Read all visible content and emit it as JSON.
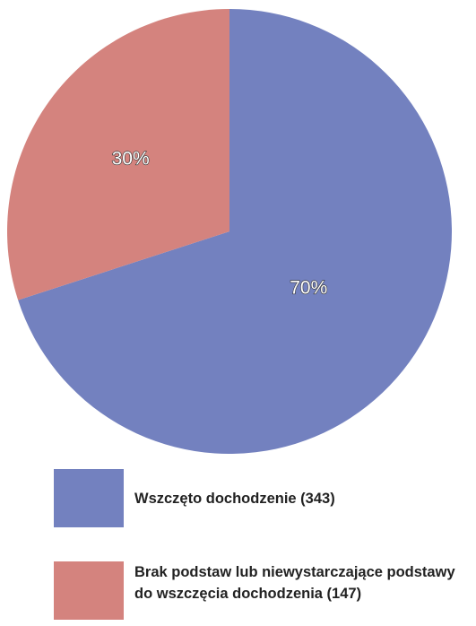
{
  "chart_data": {
    "type": "pie",
    "categories": [
      "Wszczęto dochodzenie (343)",
      "Brak podstaw lub niewystarczające podstawy do wszczęcia dochodzenia (147)"
    ],
    "values": [
      70,
      30
    ],
    "value_labels": [
      "70%",
      "30%"
    ],
    "colors": [
      "#7381bf",
      "#d4837e"
    ]
  }
}
